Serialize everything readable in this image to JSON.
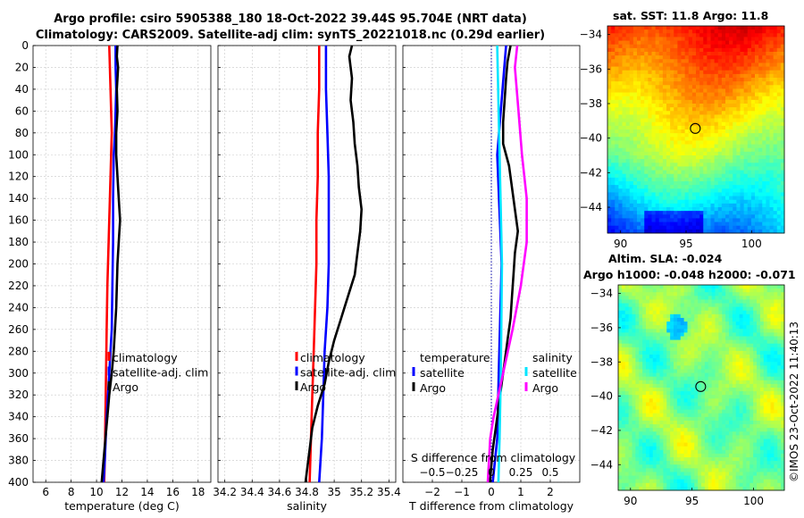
{
  "page": {
    "title_line1": "Argo profile: csiro 5905388_180 18-Oct-2022 39.44S 95.704E (NRT data)",
    "title_line2": "Climatology: CARS2009. Satellite-adj clim: synTS_20221018.nc (0.29d earlier)",
    "credit": "©IMOS 23-Oct-2022 11:40:13"
  },
  "colors": {
    "climatology": "#ff0000",
    "satellite": "#0000ff",
    "argo": "#000000",
    "sal_satellite": "#00e5ff",
    "sal_argo": "#ff00ff"
  },
  "chart_data": [
    {
      "type": "line",
      "id": "temperature",
      "xlabel": "temperature (deg C)",
      "ylabel": "",
      "xlim": [
        5,
        19
      ],
      "ylim": [
        400,
        0
      ],
      "xticks": [
        6,
        8,
        10,
        12,
        14,
        16,
        18
      ],
      "yticks": [
        0,
        20,
        40,
        60,
        80,
        100,
        120,
        140,
        160,
        180,
        200,
        220,
        240,
        260,
        280,
        300,
        320,
        340,
        360,
        380,
        400
      ],
      "grid": true,
      "legend_position": "lower-right",
      "series": [
        {
          "name": "climatology",
          "color_key": "climatology",
          "depth": [
            0,
            20,
            40,
            60,
            80,
            100,
            140,
            180,
            220,
            260,
            300,
            340,
            380,
            400
          ],
          "values": [
            11.0,
            11.05,
            11.1,
            11.15,
            11.2,
            11.15,
            11.05,
            10.95,
            10.85,
            10.8,
            10.75,
            10.7,
            10.65,
            10.6
          ]
        },
        {
          "name": "satellite-adj. clim",
          "color_key": "satellite",
          "depth": [
            0,
            20,
            40,
            60,
            80,
            100,
            140,
            180,
            220,
            260,
            300,
            340,
            380,
            400
          ],
          "values": [
            11.5,
            11.5,
            11.55,
            11.5,
            11.45,
            11.35,
            11.3,
            11.3,
            11.25,
            11.2,
            11.0,
            10.8,
            10.65,
            10.55
          ]
        },
        {
          "name": "Argo",
          "color_key": "argo",
          "depth": [
            0,
            10,
            20,
            40,
            60,
            80,
            100,
            120,
            140,
            160,
            180,
            200,
            220,
            240,
            260,
            280,
            300,
            320,
            340,
            360,
            380,
            400
          ],
          "values": [
            11.65,
            11.6,
            11.7,
            11.6,
            11.65,
            11.55,
            11.55,
            11.65,
            11.75,
            11.85,
            11.75,
            11.65,
            11.6,
            11.55,
            11.45,
            11.35,
            11.2,
            11.0,
            10.85,
            10.7,
            10.55,
            10.4
          ]
        }
      ]
    },
    {
      "type": "line",
      "id": "salinity",
      "xlabel": "salinity",
      "ylabel": "",
      "xlim": [
        34.15,
        35.45
      ],
      "ylim": [
        400,
        0
      ],
      "xticks": [
        34.2,
        34.4,
        34.6,
        34.8,
        35,
        35.2,
        35.4
      ],
      "xtick_labels": [
        "34.2",
        "34.4",
        "34.6",
        "34.8",
        "35",
        "35.2",
        "35.4"
      ],
      "grid": true,
      "legend_position": "lower-right",
      "series": [
        {
          "name": "climatology",
          "color_key": "climatology",
          "depth": [
            0,
            40,
            80,
            120,
            160,
            200,
            240,
            280,
            320,
            360,
            400
          ],
          "values": [
            34.89,
            34.89,
            34.88,
            34.88,
            34.87,
            34.87,
            34.86,
            34.85,
            34.84,
            34.83,
            34.82
          ]
        },
        {
          "name": "satellite-adj. clim",
          "color_key": "satellite",
          "depth": [
            0,
            40,
            80,
            120,
            160,
            200,
            240,
            280,
            320,
            360,
            400
          ],
          "values": [
            34.94,
            34.94,
            34.95,
            34.96,
            34.96,
            34.96,
            34.95,
            34.93,
            34.92,
            34.91,
            34.89
          ]
        },
        {
          "name": "Argo",
          "color_key": "argo",
          "depth": [
            0,
            10,
            30,
            50,
            70,
            90,
            110,
            130,
            150,
            170,
            190,
            210,
            230,
            250,
            270,
            290,
            310,
            330,
            350,
            370,
            390,
            400
          ],
          "values": [
            35.13,
            35.11,
            35.13,
            35.12,
            35.14,
            35.15,
            35.17,
            35.18,
            35.2,
            35.19,
            35.17,
            35.15,
            35.1,
            35.05,
            35.0,
            34.96,
            34.93,
            34.88,
            34.84,
            34.82,
            34.8,
            34.79
          ]
        }
      ]
    },
    {
      "type": "line",
      "id": "difference",
      "xlabel": "T difference from climatology",
      "top_axis_label": "S difference from climatology",
      "xlim": [
        -3,
        3
      ],
      "ylim": [
        400,
        0
      ],
      "xticks": [
        -2,
        -1,
        0,
        1,
        2
      ],
      "top_axis_xlim": [
        -0.75,
        0.75
      ],
      "top_axis_ticks": [
        -0.5,
        -0.25,
        0,
        0.25,
        0.5
      ],
      "top_axis_tick_labels": [
        "-0.5",
        "-0.25",
        "0",
        "0.25",
        "0.5"
      ],
      "grid": true,
      "zero_line": true,
      "legend_position": "lower",
      "legend_group_titles": [
        "temperature",
        "salinity"
      ],
      "series": [
        {
          "name": "satellite",
          "group": "temperature",
          "color_key": "satellite",
          "depth": [
            0,
            100,
            200,
            300,
            360,
            400
          ],
          "values": [
            0.5,
            0.2,
            0.35,
            0.25,
            0.2,
            0.05
          ]
        },
        {
          "name": "Argo",
          "group": "temperature",
          "color_key": "argo",
          "depth": [
            0,
            15,
            30,
            50,
            70,
            90,
            110,
            130,
            150,
            170,
            190,
            210,
            230,
            250,
            270,
            290,
            310,
            330,
            350,
            370,
            400
          ],
          "values": [
            0.65,
            0.55,
            0.5,
            0.45,
            0.4,
            0.4,
            0.6,
            0.7,
            0.8,
            0.9,
            0.8,
            0.75,
            0.7,
            0.65,
            0.55,
            0.45,
            0.35,
            0.25,
            0.15,
            0.05,
            -0.05
          ]
        },
        {
          "name": "satellite",
          "group": "salinity",
          "color_key": "sal_satellite",
          "depth": [
            0,
            100,
            200,
            300,
            360,
            400
          ],
          "values": [
            0.05,
            0.07,
            0.09,
            0.08,
            0.07,
            0.06
          ]
        },
        {
          "name": "Argo",
          "group": "salinity",
          "color_key": "sal_argo",
          "depth": [
            0,
            20,
            60,
            100,
            140,
            180,
            220,
            260,
            300,
            340,
            360,
            380,
            400
          ],
          "values": [
            0.22,
            0.2,
            0.23,
            0.26,
            0.3,
            0.3,
            0.25,
            0.18,
            0.1,
            0.02,
            -0.01,
            -0.02,
            -0.03
          ]
        }
      ]
    },
    {
      "type": "heatmap",
      "id": "sst_map",
      "title": "sat. SST: 11.8 Argo: 11.8",
      "xlim": [
        89,
        102.5
      ],
      "ylim": [
        -45.5,
        -33.5
      ],
      "xticks": [
        90,
        95,
        100
      ],
      "yticks": [
        -34,
        -36,
        -38,
        -40,
        -42,
        -44
      ],
      "ytick_labels": [
        "-34",
        "-36",
        "-38",
        "-40",
        "-42",
        "-44"
      ],
      "profile_location": {
        "lon": 95.704,
        "lat": -39.44
      },
      "colormap": "jet"
    },
    {
      "type": "heatmap",
      "id": "sla_map",
      "title_line1": "Altim. SLA: -0.024",
      "title_line2": "Argo h1000: -0.048 h2000: -0.071",
      "xlim": [
        89,
        102.5
      ],
      "ylim": [
        -45.5,
        -33.5
      ],
      "xticks": [
        90,
        95,
        100
      ],
      "yticks": [
        -34,
        -36,
        -38,
        -40,
        -42,
        -44
      ],
      "ytick_labels": [
        "-34",
        "-36",
        "-38",
        "-40",
        "-42",
        "-44"
      ],
      "profile_location": {
        "lon": 95.704,
        "lat": -39.44
      },
      "colormap": "jet"
    }
  ],
  "legends": {
    "temperature": [
      "climatology",
      "satellite-adj. clim",
      "Argo"
    ],
    "salinity": [
      "climatology",
      "satellite-adj. clim",
      "Argo"
    ],
    "difference_temperature_title": "temperature",
    "difference_salinity_title": "salinity",
    "difference_temperature": [
      "satellite",
      "Argo"
    ],
    "difference_salinity": [
      "satellite",
      "Argo"
    ]
  }
}
